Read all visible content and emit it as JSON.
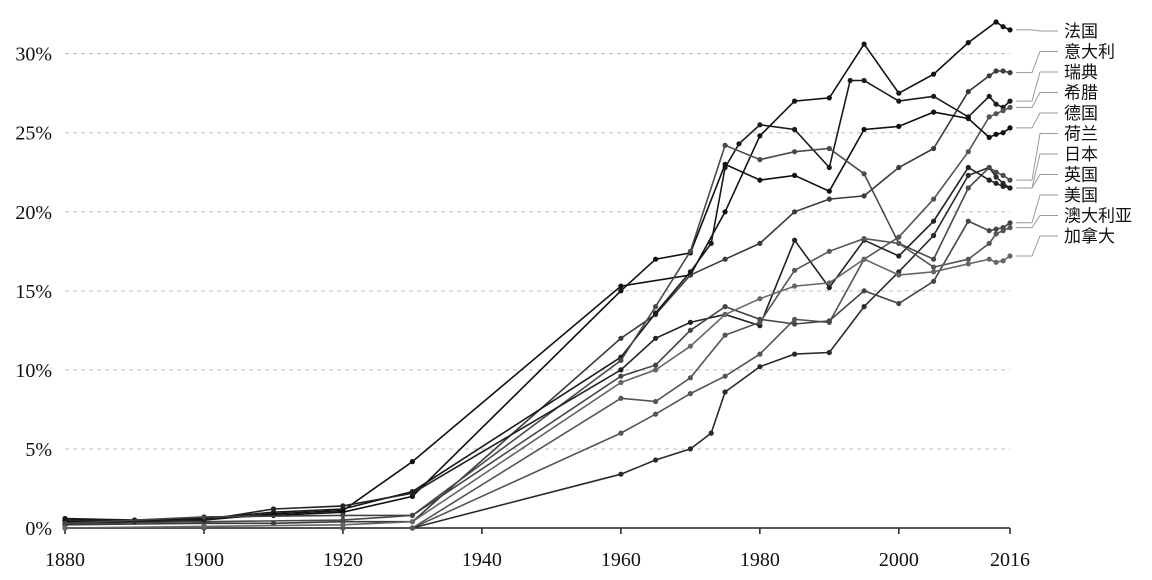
{
  "chart_data": {
    "type": "line",
    "title": "",
    "xlabel": "",
    "ylabel": "",
    "xlim": [
      1880,
      2016
    ],
    "ylim": [
      0,
      32
    ],
    "grid": true,
    "legend_placement": "right, end-of-line labels",
    "x_ticks": [
      1880,
      1900,
      1920,
      1940,
      1960,
      1980,
      2000,
      2016
    ],
    "y_ticks": [
      {
        "value": 0,
        "label": "0%"
      },
      {
        "value": 5,
        "label": "5%"
      },
      {
        "value": 10,
        "label": "10%"
      },
      {
        "value": 15,
        "label": "15%"
      },
      {
        "value": 20,
        "label": "20%"
      },
      {
        "value": 25,
        "label": "25%"
      },
      {
        "value": 30,
        "label": "30%"
      }
    ],
    "series": [
      {
        "name": "法国",
        "color": "#111111",
        "points": [
          [
            1880,
            0.5
          ],
          [
            1890,
            0.5
          ],
          [
            1900,
            0.5
          ],
          [
            1910,
            0.9
          ],
          [
            1920,
            1.1
          ],
          [
            1930,
            4.2
          ],
          [
            1960,
            15.3
          ],
          [
            1970,
            16.0
          ],
          [
            1975,
            20.0
          ],
          [
            1980,
            24.8
          ],
          [
            1985,
            27.0
          ],
          [
            1990,
            27.2
          ],
          [
            1995,
            30.6
          ],
          [
            2000,
            27.5
          ],
          [
            2005,
            28.7
          ],
          [
            2010,
            30.7
          ],
          [
            2014,
            32.0
          ],
          [
            2015,
            31.7
          ],
          [
            2016,
            31.5
          ]
        ]
      },
      {
        "name": "意大利",
        "color": "#3a3a3a",
        "points": [
          [
            1880,
            0.2
          ],
          [
            1900,
            0.3
          ],
          [
            1910,
            0.3
          ],
          [
            1920,
            0.4
          ],
          [
            1930,
            0.4
          ],
          [
            1960,
            12.0
          ],
          [
            1965,
            13.5
          ],
          [
            1970,
            16.0
          ],
          [
            1975,
            17.0
          ],
          [
            1980,
            18.0
          ],
          [
            1985,
            20.0
          ],
          [
            1990,
            20.8
          ],
          [
            1995,
            21.0
          ],
          [
            2000,
            22.8
          ],
          [
            2005,
            24.0
          ],
          [
            2010,
            27.6
          ],
          [
            2013,
            28.6
          ],
          [
            2014,
            28.9
          ],
          [
            2015,
            28.9
          ],
          [
            2016,
            28.8
          ]
        ]
      },
      {
        "name": "瑞典",
        "color": "#1a1a1a",
        "points": [
          [
            1880,
            0.6
          ],
          [
            1890,
            0.5
          ],
          [
            1900,
            0.6
          ],
          [
            1910,
            1.0
          ],
          [
            1920,
            1.2
          ],
          [
            1930,
            2.3
          ],
          [
            1960,
            10.8
          ],
          [
            1965,
            13.6
          ],
          [
            1970,
            16.2
          ],
          [
            1973,
            18.0
          ],
          [
            1975,
            22.8
          ],
          [
            1977,
            24.3
          ],
          [
            1980,
            25.5
          ],
          [
            1985,
            25.2
          ],
          [
            1990,
            22.8
          ],
          [
            1993,
            28.3
          ],
          [
            1995,
            28.3
          ],
          [
            2000,
            27.0
          ],
          [
            2005,
            27.3
          ],
          [
            2010,
            26.0
          ],
          [
            2013,
            27.3
          ],
          [
            2014,
            26.8
          ],
          [
            2015,
            26.6
          ],
          [
            2016,
            27.0
          ]
        ]
      },
      {
        "name": "希腊",
        "color": "#555555",
        "points": [
          [
            1880,
            0.0
          ],
          [
            1900,
            0.0
          ],
          [
            1920,
            0.0
          ],
          [
            1930,
            0.0
          ],
          [
            1960,
            6.0
          ],
          [
            1965,
            7.2
          ],
          [
            1970,
            8.5
          ],
          [
            1975,
            9.6
          ],
          [
            1980,
            11.0
          ],
          [
            1985,
            13.2
          ],
          [
            1990,
            13.0
          ],
          [
            1995,
            17.0
          ],
          [
            2000,
            18.4
          ],
          [
            2005,
            20.8
          ],
          [
            2010,
            23.8
          ],
          [
            2013,
            26.0
          ],
          [
            2014,
            26.2
          ],
          [
            2015,
            26.4
          ],
          [
            2016,
            26.6
          ]
        ]
      },
      {
        "name": "德国",
        "color": "#0f0f0f",
        "points": [
          [
            1880,
            0.4
          ],
          [
            1890,
            0.4
          ],
          [
            1900,
            0.6
          ],
          [
            1910,
            0.8
          ],
          [
            1920,
            1.0
          ],
          [
            1930,
            2.0
          ],
          [
            1960,
            15.0
          ],
          [
            1965,
            17.0
          ],
          [
            1970,
            17.4
          ],
          [
            1975,
            23.0
          ],
          [
            1980,
            22.0
          ],
          [
            1985,
            22.3
          ],
          [
            1990,
            21.3
          ],
          [
            1995,
            25.2
          ],
          [
            2000,
            25.4
          ],
          [
            2005,
            26.3
          ],
          [
            2010,
            25.9
          ],
          [
            2013,
            24.7
          ],
          [
            2014,
            24.9
          ],
          [
            2015,
            25.0
          ],
          [
            2016,
            25.3
          ]
        ]
      },
      {
        "name": "日本",
        "color": "#2a2a2a",
        "points": [
          [
            1880,
            0.0
          ],
          [
            1900,
            0.0
          ],
          [
            1920,
            0.0
          ],
          [
            1930,
            0.0
          ],
          [
            1960,
            3.4
          ],
          [
            1965,
            4.3
          ],
          [
            1970,
            5.0
          ],
          [
            1973,
            6.0
          ],
          [
            1975,
            8.6
          ],
          [
            1980,
            10.2
          ],
          [
            1985,
            11.0
          ],
          [
            1990,
            11.1
          ],
          [
            1995,
            14.0
          ],
          [
            2000,
            16.2
          ],
          [
            2005,
            18.5
          ],
          [
            2010,
            22.3
          ],
          [
            2013,
            22.8
          ],
          [
            2014,
            22.2
          ],
          [
            2015,
            21.8
          ],
          [
            2016,
            21.5
          ]
        ]
      },
      {
        "name": "荷兰",
        "color": "#4a4a4a",
        "points": [
          [
            1880,
            0.3
          ],
          [
            1900,
            0.4
          ],
          [
            1920,
            0.5
          ],
          [
            1930,
            0.8
          ],
          [
            1960,
            10.6
          ],
          [
            1965,
            14.0
          ],
          [
            1970,
            17.5
          ],
          [
            1975,
            24.2
          ],
          [
            1980,
            23.3
          ],
          [
            1985,
            23.8
          ],
          [
            1990,
            24.0
          ],
          [
            1995,
            22.4
          ],
          [
            2000,
            18.0
          ],
          [
            2005,
            17.0
          ],
          [
            2010,
            21.5
          ],
          [
            2013,
            22.8
          ],
          [
            2014,
            22.5
          ],
          [
            2015,
            22.3
          ],
          [
            2016,
            22.0
          ]
        ]
      },
      {
        "name": "英国",
        "color": "#222222",
        "points": [
          [
            1880,
            0.3
          ],
          [
            1900,
            0.5
          ],
          [
            1910,
            1.2
          ],
          [
            1920,
            1.4
          ],
          [
            1930,
            2.2
          ],
          [
            1960,
            10.0
          ],
          [
            1965,
            12.0
          ],
          [
            1970,
            13.0
          ],
          [
            1975,
            13.5
          ],
          [
            1980,
            12.8
          ],
          [
            1985,
            18.2
          ],
          [
            1990,
            15.2
          ],
          [
            1995,
            18.2
          ],
          [
            2000,
            17.2
          ],
          [
            2005,
            19.4
          ],
          [
            2010,
            22.8
          ],
          [
            2013,
            22.0
          ],
          [
            2014,
            21.8
          ],
          [
            2015,
            21.6
          ],
          [
            2016,
            21.5
          ]
        ]
      },
      {
        "name": "美国",
        "color": "#444444",
        "points": [
          [
            1880,
            0.3
          ],
          [
            1900,
            0.7
          ],
          [
            1920,
            0.8
          ],
          [
            1930,
            0.8
          ],
          [
            1960,
            9.6
          ],
          [
            1965,
            10.3
          ],
          [
            1970,
            12.5
          ],
          [
            1975,
            14.0
          ],
          [
            1980,
            13.2
          ],
          [
            1985,
            12.9
          ],
          [
            1990,
            13.1
          ],
          [
            1995,
            15.0
          ],
          [
            2000,
            14.2
          ],
          [
            2005,
            15.6
          ],
          [
            2010,
            19.4
          ],
          [
            2013,
            18.8
          ],
          [
            2014,
            18.9
          ],
          [
            2015,
            19.0
          ],
          [
            2016,
            19.3
          ]
        ]
      },
      {
        "name": "澳大利亚",
        "color": "#555555",
        "points": [
          [
            1880,
            0.0
          ],
          [
            1900,
            0.0
          ],
          [
            1920,
            0.0
          ],
          [
            1930,
            0.0
          ],
          [
            1960,
            8.2
          ],
          [
            1965,
            8.0
          ],
          [
            1970,
            9.5
          ],
          [
            1975,
            12.2
          ],
          [
            1980,
            13.0
          ],
          [
            1985,
            16.3
          ],
          [
            1990,
            17.5
          ],
          [
            1995,
            18.3
          ],
          [
            2000,
            18.0
          ],
          [
            2005,
            16.5
          ],
          [
            2010,
            17.0
          ],
          [
            2013,
            18.0
          ],
          [
            2014,
            18.6
          ],
          [
            2015,
            18.8
          ],
          [
            2016,
            19.0
          ]
        ]
      },
      {
        "name": "加拿大",
        "color": "#666666",
        "points": [
          [
            1880,
            0.0
          ],
          [
            1900,
            0.1
          ],
          [
            1920,
            0.2
          ],
          [
            1930,
            0.4
          ],
          [
            1960,
            9.2
          ],
          [
            1965,
            10.0
          ],
          [
            1970,
            11.5
          ],
          [
            1975,
            13.5
          ],
          [
            1980,
            14.5
          ],
          [
            1985,
            15.3
          ],
          [
            1990,
            15.5
          ],
          [
            1995,
            17.0
          ],
          [
            2000,
            16.0
          ],
          [
            2005,
            16.2
          ],
          [
            2010,
            16.7
          ],
          [
            2013,
            17.0
          ],
          [
            2014,
            16.8
          ],
          [
            2015,
            16.9
          ],
          [
            2016,
            17.2
          ]
        ]
      }
    ]
  }
}
